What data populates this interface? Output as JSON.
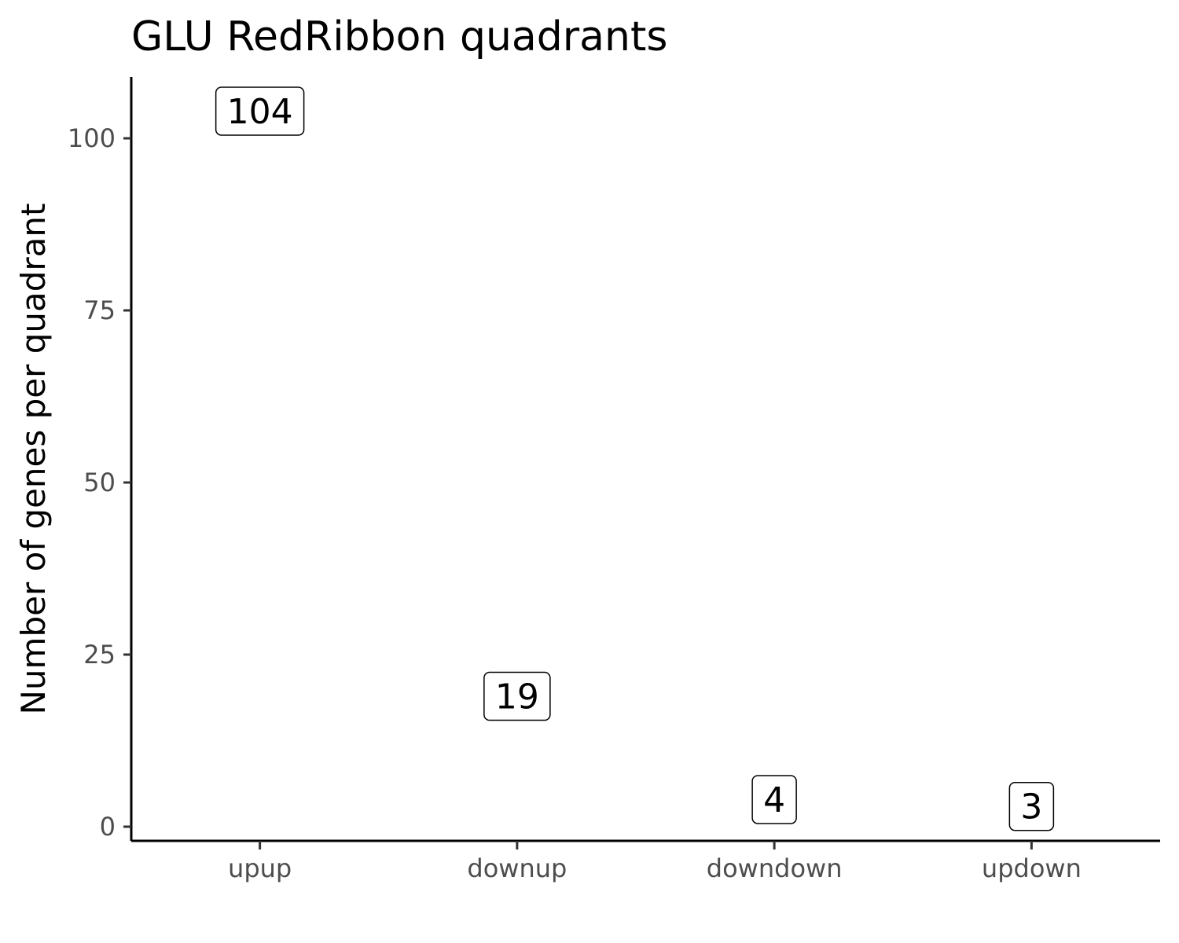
{
  "chart_data": {
    "type": "scatter",
    "title": "GLU RedRibbon quadrants",
    "xlabel": "",
    "ylabel": "Number of genes per quadrant",
    "categories": [
      "upup",
      "downup",
      "downdown",
      "updown"
    ],
    "values": [
      104,
      19,
      4,
      3
    ],
    "data_labels": [
      "104",
      "19",
      "4",
      "3"
    ],
    "yticks": [
      0,
      25,
      50,
      75,
      100
    ],
    "ytick_labels": [
      "0",
      "25",
      "50",
      "75",
      "100"
    ],
    "ylim": [
      -1.8,
      108.9
    ],
    "grid": false,
    "legend": "none"
  }
}
